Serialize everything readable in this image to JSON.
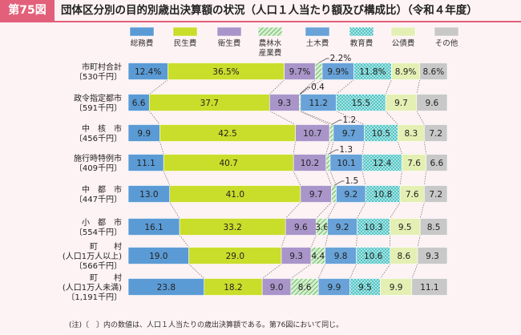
{
  "figure": {
    "badge": "第75図",
    "title": "団体区分別の目的別歳出決算額の状況（人口１人当たり額及び構成比）（令和４年度）",
    "note": "(注)〔　〕内の数値は、人口１人当たりの歳出決算額である。第76図において同じ。"
  },
  "colors": {
    "accent": "#e2607a",
    "general": "#5b9bd5",
    "welfare": "#c9dd2b",
    "health": "#a995c9",
    "agriculture": "#70b870",
    "civil": "#68a2d8",
    "education": "#4dc3c3",
    "debt": "#e4efb4",
    "other": "#c8c8c8"
  },
  "chart_data": {
    "type": "bar",
    "stacked": true,
    "orientation": "horizontal",
    "unit": "%",
    "xlim": [
      0,
      100
    ],
    "legend_position": "top",
    "categories": [
      [
        "市町村合計",
        "〔530千円〕"
      ],
      [
        "政令指定都市",
        "〔591千円〕"
      ],
      [
        "中　核　市",
        "〔456千円〕"
      ],
      [
        "施行時特例市",
        "〔409千円〕"
      ],
      [
        "中　都　市",
        "〔447千円〕"
      ],
      [
        "小　都　市",
        "〔554千円〕"
      ],
      [
        "町　　村",
        "(人口1万人以上)",
        "〔566千円〕"
      ],
      [
        "町　　村",
        "(人口1万人未満)",
        "〔1,191千円〕"
      ]
    ],
    "series": [
      {
        "name": "総務費",
        "values": [
          12.4,
          6.6,
          9.9,
          11.1,
          13.0,
          16.1,
          19.0,
          23.8
        ]
      },
      {
        "name": "民生費",
        "values": [
          36.5,
          37.7,
          42.5,
          40.7,
          41.0,
          33.2,
          29.0,
          18.2
        ]
      },
      {
        "name": "衛生費",
        "values": [
          9.7,
          9.3,
          10.7,
          10.2,
          9.7,
          9.6,
          9.3,
          9.0
        ]
      },
      {
        "name": "農林水産業費",
        "values": [
          2.2,
          0.4,
          1.2,
          1.3,
          1.5,
          3.6,
          4.4,
          8.6
        ]
      },
      {
        "name": "土木費",
        "values": [
          9.9,
          11.2,
          9.7,
          10.1,
          9.2,
          9.2,
          9.8,
          9.9
        ]
      },
      {
        "name": "教育費",
        "values": [
          11.8,
          15.5,
          10.5,
          12.4,
          10.8,
          10.3,
          10.6,
          9.5
        ]
      },
      {
        "name": "公債費",
        "values": [
          8.9,
          9.7,
          8.3,
          7.6,
          7.6,
          9.5,
          8.6,
          9.9
        ]
      },
      {
        "name": "その他",
        "values": [
          8.6,
          9.6,
          7.2,
          6.6,
          7.2,
          8.5,
          9.3,
          11.1
        ]
      }
    ],
    "labels": [
      [
        "12.4%",
        "36.5%",
        "9.7%",
        "2.2%",
        "9.9%",
        "11.8%",
        "8.9%",
        "8.6%"
      ],
      [
        "6.6",
        "37.7",
        "9.3",
        "0.4",
        "11.2",
        "15.5",
        "9.7",
        "9.6"
      ],
      [
        "9.9",
        "42.5",
        "10.7",
        "1.2",
        "9.7",
        "10.5",
        "8.3",
        "7.2"
      ],
      [
        "11.1",
        "40.7",
        "10.2",
        "1.3",
        "10.1",
        "12.4",
        "7.6",
        "6.6"
      ],
      [
        "13.0",
        "41.0",
        "9.7",
        "1.5",
        "9.2",
        "10.8",
        "7.6",
        "7.2"
      ],
      [
        "16.1",
        "33.2",
        "9.6",
        "3.6",
        "9.2",
        "10.3",
        "9.5",
        "8.5"
      ],
      [
        "19.0",
        "29.0",
        "9.3",
        "4.4",
        "9.8",
        "10.6",
        "8.6",
        "9.3"
      ],
      [
        "23.8",
        "18.2",
        "9.0",
        "8.6",
        "9.9",
        "9.5",
        "9.9",
        "11.1"
      ]
    ],
    "callout_rows": [
      0,
      1,
      2,
      3,
      4
    ]
  }
}
